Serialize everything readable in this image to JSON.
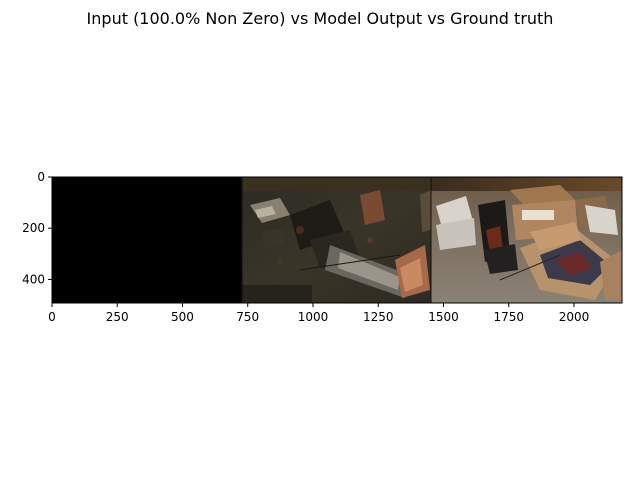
{
  "figure": {
    "title": "Input (100.0% Non Zero) vs Model Output vs Ground truth"
  },
  "axes": {
    "x_ticks": [
      0,
      250,
      500,
      750,
      1000,
      1250,
      1500,
      1750,
      2000
    ],
    "y_ticks": [
      0,
      200,
      400
    ],
    "x_range": [
      0,
      2184
    ],
    "y_range": [
      0,
      492
    ]
  },
  "panels": [
    {
      "name": "input",
      "fill": "#000000"
    },
    {
      "name": "model-output",
      "fill": "#2e2a22"
    },
    {
      "name": "ground-truth",
      "fill": "#5a4a38"
    }
  ],
  "colors": {
    "axis": "#000000",
    "divider": "#111111"
  }
}
